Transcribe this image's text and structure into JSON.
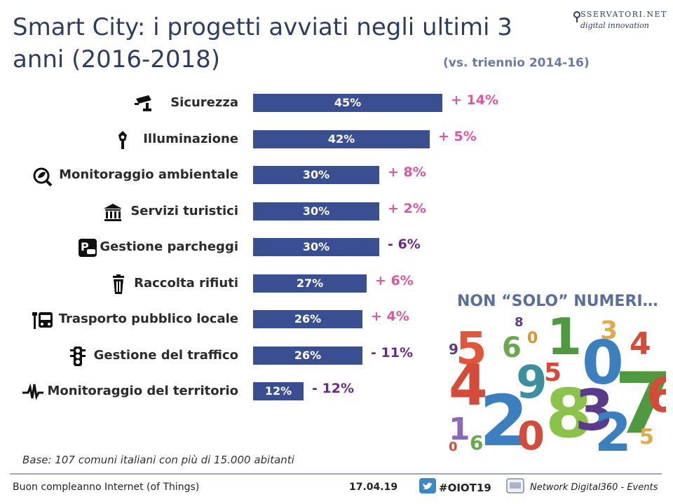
{
  "header": {
    "title_line1": "Smart City: i progetti avviati negli ultimi 3",
    "title_line2": "anni (2016-2018)",
    "subtitle": "(vs. triennio 2014-16)",
    "logo_top": "SSERVATORI.NET",
    "logo_bottom": "digital innovation"
  },
  "chart_data": {
    "type": "bar",
    "orientation": "horizontal",
    "title": "Smart City: i progetti avviati negli ultimi 3 anni (2016-2018)",
    "categories": [
      "Sicurezza",
      "Illuminazione",
      "Monitoraggio ambientale",
      "Servizi turistici",
      "Gestione parcheggi",
      "Raccolta rifiuti",
      "Trasporto pubblico locale",
      "Gestione del traffico",
      "Monitoraggio del territorio"
    ],
    "values": [
      45,
      42,
      30,
      30,
      30,
      27,
      26,
      26,
      12
    ],
    "value_labels": [
      "45%",
      "42%",
      "30%",
      "30%",
      "30%",
      "27%",
      "26%",
      "26%",
      "12%"
    ],
    "deltas": [
      "+ 14%",
      "+ 5%",
      "+ 8%",
      "+ 2%",
      "- 6%",
      "+ 6%",
      "+ 4%",
      "- 11%",
      "- 12%"
    ],
    "delta_values": [
      14,
      5,
      8,
      2,
      -6,
      6,
      4,
      -11,
      -12
    ],
    "icons": [
      "cctv-camera-icon",
      "street-lamp-icon",
      "environment-monitor-icon",
      "museum-icon",
      "parking-icon",
      "trash-bin-icon",
      "bus-icon",
      "traffic-light-icon",
      "pulse-wave-icon"
    ],
    "xlim": [
      0,
      50
    ],
    "bar_color": "#3a4f92",
    "positive_delta_color": "#e0569c",
    "negative_delta_color": "#6a2a8a"
  },
  "side": {
    "non_solo": "NON “SOLO” NUMERI…"
  },
  "note": {
    "base": "Base: 107 comuni italiani con più di 15.000 abitanti"
  },
  "footer": {
    "left": "Buon compleanno Internet (of Things)",
    "date": "17.04.19",
    "hashtag": "#OIOT19",
    "network": "Network Digital360 - Events"
  }
}
